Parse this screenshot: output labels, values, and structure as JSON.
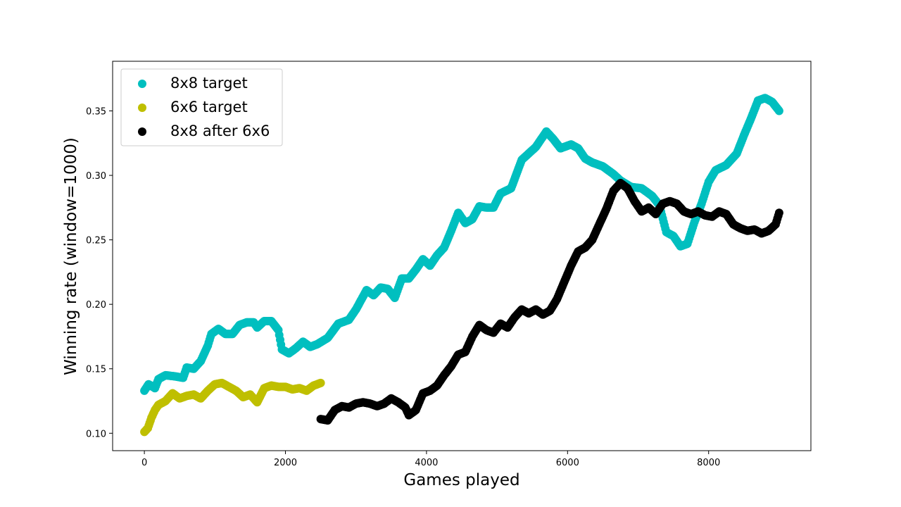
{
  "chart_data": {
    "type": "scatter",
    "title": "",
    "xlabel": "Games played",
    "ylabel": "Winning rate (window=1000)",
    "xlim": [
      -450,
      9450
    ],
    "ylim": [
      0.0865,
      0.3885
    ],
    "xticks": [
      0,
      2000,
      4000,
      6000,
      8000
    ],
    "xtick_labels": [
      "0",
      "2000",
      "4000",
      "6000",
      "8000"
    ],
    "yticks": [
      0.1,
      0.15,
      0.2,
      0.25,
      0.3,
      0.35
    ],
    "ytick_labels": [
      "0.10",
      "0.15",
      "0.20",
      "0.25",
      "0.30",
      "0.35"
    ],
    "grid": false,
    "legend_position": "top-left",
    "series": [
      {
        "name": "8x8 target",
        "color": "#00bfbf",
        "points": [
          [
            0,
            0.133
          ],
          [
            60,
            0.138
          ],
          [
            150,
            0.135
          ],
          [
            200,
            0.142
          ],
          [
            300,
            0.145
          ],
          [
            450,
            0.144
          ],
          [
            550,
            0.143
          ],
          [
            600,
            0.151
          ],
          [
            700,
            0.15
          ],
          [
            800,
            0.156
          ],
          [
            900,
            0.168
          ],
          [
            950,
            0.177
          ],
          [
            1050,
            0.181
          ],
          [
            1150,
            0.177
          ],
          [
            1250,
            0.177
          ],
          [
            1350,
            0.184
          ],
          [
            1450,
            0.186
          ],
          [
            1550,
            0.186
          ],
          [
            1600,
            0.182
          ],
          [
            1700,
            0.187
          ],
          [
            1800,
            0.187
          ],
          [
            1900,
            0.18
          ],
          [
            1950,
            0.165
          ],
          [
            2050,
            0.162
          ],
          [
            2150,
            0.166
          ],
          [
            2250,
            0.171
          ],
          [
            2350,
            0.167
          ],
          [
            2450,
            0.169
          ],
          [
            2600,
            0.174
          ],
          [
            2750,
            0.185
          ],
          [
            2900,
            0.188
          ],
          [
            3000,
            0.196
          ],
          [
            3150,
            0.211
          ],
          [
            3250,
            0.207
          ],
          [
            3350,
            0.213
          ],
          [
            3450,
            0.212
          ],
          [
            3550,
            0.205
          ],
          [
            3650,
            0.22
          ],
          [
            3750,
            0.22
          ],
          [
            3850,
            0.227
          ],
          [
            3950,
            0.235
          ],
          [
            4050,
            0.23
          ],
          [
            4150,
            0.238
          ],
          [
            4250,
            0.244
          ],
          [
            4350,
            0.257
          ],
          [
            4450,
            0.271
          ],
          [
            4550,
            0.263
          ],
          [
            4650,
            0.266
          ],
          [
            4750,
            0.276
          ],
          [
            4850,
            0.275
          ],
          [
            4950,
            0.275
          ],
          [
            5050,
            0.286
          ],
          [
            5200,
            0.29
          ],
          [
            5350,
            0.312
          ],
          [
            5450,
            0.317
          ],
          [
            5550,
            0.322
          ],
          [
            5700,
            0.334
          ],
          [
            5800,
            0.328
          ],
          [
            5900,
            0.321
          ],
          [
            6050,
            0.324
          ],
          [
            6150,
            0.321
          ],
          [
            6250,
            0.313
          ],
          [
            6350,
            0.31
          ],
          [
            6500,
            0.307
          ],
          [
            6650,
            0.301
          ],
          [
            6750,
            0.296
          ],
          [
            6900,
            0.291
          ],
          [
            7050,
            0.29
          ],
          [
            7200,
            0.284
          ],
          [
            7300,
            0.277
          ],
          [
            7400,
            0.256
          ],
          [
            7500,
            0.253
          ],
          [
            7600,
            0.245
          ],
          [
            7700,
            0.247
          ],
          [
            7800,
            0.264
          ],
          [
            7900,
            0.278
          ],
          [
            8000,
            0.295
          ],
          [
            8100,
            0.304
          ],
          [
            8250,
            0.308
          ],
          [
            8400,
            0.317
          ],
          [
            8500,
            0.331
          ],
          [
            8600,
            0.344
          ],
          [
            8700,
            0.358
          ],
          [
            8800,
            0.36
          ],
          [
            8900,
            0.357
          ],
          [
            9000,
            0.35
          ]
        ]
      },
      {
        "name": "6x6 target",
        "color": "#bfbf00",
        "points": [
          [
            0,
            0.101
          ],
          [
            50,
            0.104
          ],
          [
            100,
            0.112
          ],
          [
            150,
            0.118
          ],
          [
            200,
            0.122
          ],
          [
            300,
            0.125
          ],
          [
            400,
            0.131
          ],
          [
            500,
            0.127
          ],
          [
            600,
            0.129
          ],
          [
            700,
            0.13
          ],
          [
            800,
            0.127
          ],
          [
            900,
            0.133
          ],
          [
            1000,
            0.138
          ],
          [
            1100,
            0.139
          ],
          [
            1200,
            0.136
          ],
          [
            1300,
            0.133
          ],
          [
            1400,
            0.128
          ],
          [
            1500,
            0.13
          ],
          [
            1600,
            0.124
          ],
          [
            1700,
            0.135
          ],
          [
            1800,
            0.137
          ],
          [
            1900,
            0.136
          ],
          [
            2000,
            0.136
          ],
          [
            2100,
            0.134
          ],
          [
            2200,
            0.135
          ],
          [
            2300,
            0.133
          ],
          [
            2400,
            0.137
          ],
          [
            2500,
            0.139
          ]
        ]
      },
      {
        "name": "8x8 after 6x6",
        "color": "#000000",
        "points": [
          [
            2500,
            0.111
          ],
          [
            2600,
            0.11
          ],
          [
            2700,
            0.118
          ],
          [
            2800,
            0.121
          ],
          [
            2900,
            0.12
          ],
          [
            3000,
            0.123
          ],
          [
            3100,
            0.124
          ],
          [
            3200,
            0.123
          ],
          [
            3300,
            0.121
          ],
          [
            3400,
            0.123
          ],
          [
            3500,
            0.127
          ],
          [
            3600,
            0.124
          ],
          [
            3700,
            0.12
          ],
          [
            3750,
            0.114
          ],
          [
            3850,
            0.118
          ],
          [
            3950,
            0.131
          ],
          [
            4050,
            0.133
          ],
          [
            4150,
            0.137
          ],
          [
            4250,
            0.145
          ],
          [
            4350,
            0.152
          ],
          [
            4450,
            0.161
          ],
          [
            4550,
            0.163
          ],
          [
            4650,
            0.175
          ],
          [
            4750,
            0.184
          ],
          [
            4850,
            0.18
          ],
          [
            4950,
            0.178
          ],
          [
            5050,
            0.185
          ],
          [
            5150,
            0.182
          ],
          [
            5250,
            0.19
          ],
          [
            5350,
            0.196
          ],
          [
            5450,
            0.193
          ],
          [
            5550,
            0.196
          ],
          [
            5650,
            0.192
          ],
          [
            5750,
            0.195
          ],
          [
            5850,
            0.204
          ],
          [
            5950,
            0.217
          ],
          [
            6050,
            0.23
          ],
          [
            6150,
            0.241
          ],
          [
            6250,
            0.244
          ],
          [
            6350,
            0.25
          ],
          [
            6450,
            0.262
          ],
          [
            6550,
            0.274
          ],
          [
            6650,
            0.288
          ],
          [
            6750,
            0.294
          ],
          [
            6850,
            0.29
          ],
          [
            6950,
            0.28
          ],
          [
            7050,
            0.272
          ],
          [
            7150,
            0.275
          ],
          [
            7250,
            0.27
          ],
          [
            7350,
            0.278
          ],
          [
            7450,
            0.28
          ],
          [
            7550,
            0.278
          ],
          [
            7650,
            0.272
          ],
          [
            7750,
            0.27
          ],
          [
            7850,
            0.272
          ],
          [
            7950,
            0.269
          ],
          [
            8050,
            0.268
          ],
          [
            8150,
            0.272
          ],
          [
            8250,
            0.27
          ],
          [
            8350,
            0.262
          ],
          [
            8450,
            0.259
          ],
          [
            8550,
            0.257
          ],
          [
            8650,
            0.258
          ],
          [
            8750,
            0.255
          ],
          [
            8850,
            0.257
          ],
          [
            8950,
            0.262
          ],
          [
            9000,
            0.271
          ]
        ]
      }
    ]
  }
}
